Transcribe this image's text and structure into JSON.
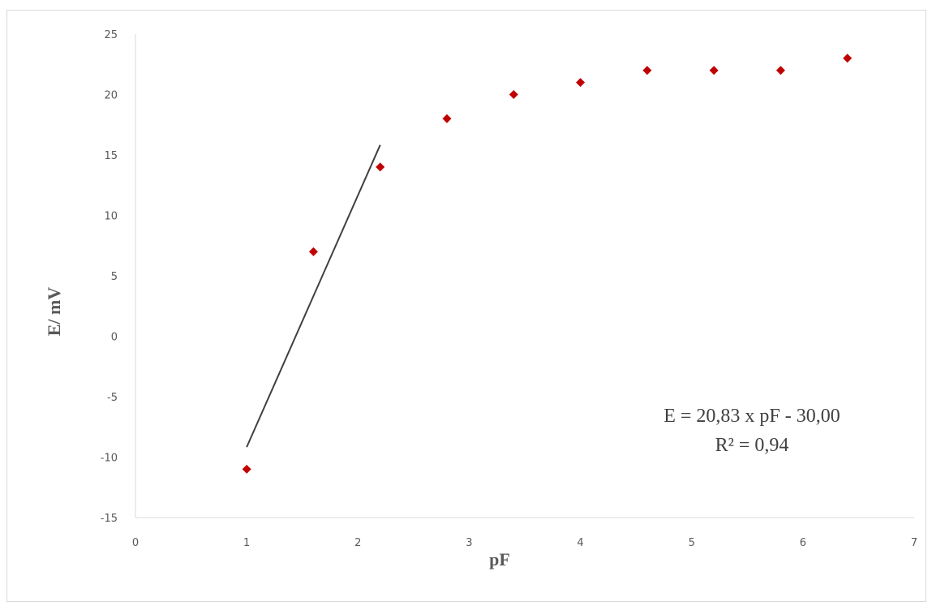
{
  "chart_data": {
    "type": "scatter",
    "xlabel": "pF",
    "ylabel": "E/ mV",
    "xlim": [
      0,
      7
    ],
    "ylim": [
      -15,
      25
    ],
    "x_ticks": [
      0,
      1,
      2,
      3,
      4,
      5,
      6,
      7
    ],
    "y_ticks": [
      -15,
      -10,
      -5,
      0,
      5,
      10,
      15,
      20,
      25
    ],
    "grid": false,
    "series": [
      {
        "marker": "diamond",
        "color": "#c00000",
        "points": [
          {
            "x": 1.0,
            "y": -11
          },
          {
            "x": 1.6,
            "y": 7
          },
          {
            "x": 2.2,
            "y": 14
          },
          {
            "x": 2.8,
            "y": 18
          },
          {
            "x": 3.4,
            "y": 20
          },
          {
            "x": 4.0,
            "y": 21
          },
          {
            "x": 4.6,
            "y": 22
          },
          {
            "x": 5.2,
            "y": 22
          },
          {
            "x": 5.8,
            "y": 22
          },
          {
            "x": 6.4,
            "y": 23
          }
        ]
      }
    ],
    "trendline": {
      "color": "#404040",
      "x_range": [
        1.0,
        2.2
      ],
      "slope": 20.83,
      "intercept": -30.0
    },
    "annotations": {
      "equation": "E = 20,83 x pF - 30,00",
      "r_squared": "R² = 0,94"
    }
  }
}
